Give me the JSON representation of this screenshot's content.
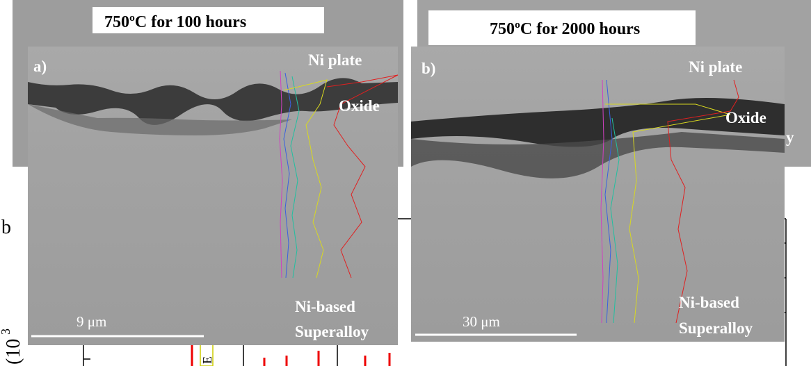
{
  "panels": [
    {
      "title": "750ºC for 100 hours",
      "label": "a)",
      "top_layer": "Ni plate",
      "middle_layer": "Oxide",
      "bottom_layer": [
        "Ni-based",
        "Superalloy"
      ],
      "scale_bar": "9 μm"
    },
    {
      "title": "750ºC for 2000 hours",
      "label": "b)",
      "top_layer": "Ni plate",
      "middle_layer": "Oxide",
      "bottom_layer": [
        "Ni-based",
        "Superalloy"
      ],
      "scale_bar": "30 μm"
    }
  ],
  "background_fragments": {
    "left_letter": "b",
    "right_letter": "y",
    "axis_label": "(10",
    "axis_exponent": "3",
    "legend_letter": "E"
  }
}
